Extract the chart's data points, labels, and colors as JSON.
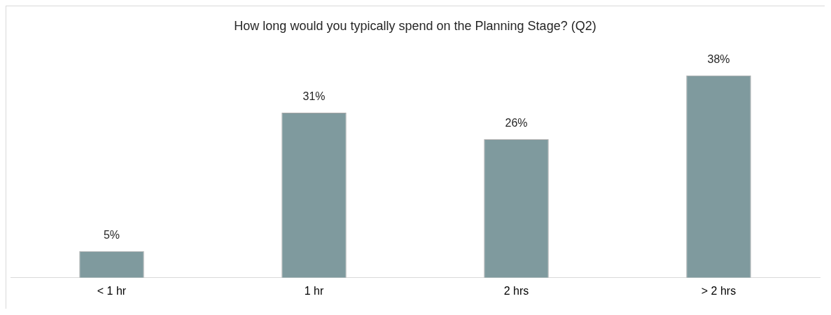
{
  "chart_data": {
    "type": "bar",
    "title": "How long would you typically spend on the Planning Stage? (Q2)",
    "categories": [
      "< 1 hr",
      "1 hr",
      "2 hrs",
      "> 2 hrs"
    ],
    "values": [
      5,
      31,
      26,
      38
    ],
    "value_labels": [
      "5%",
      "31%",
      "26%",
      "38%"
    ],
    "color": "#7f9a9e",
    "grid": false,
    "legend": false
  }
}
